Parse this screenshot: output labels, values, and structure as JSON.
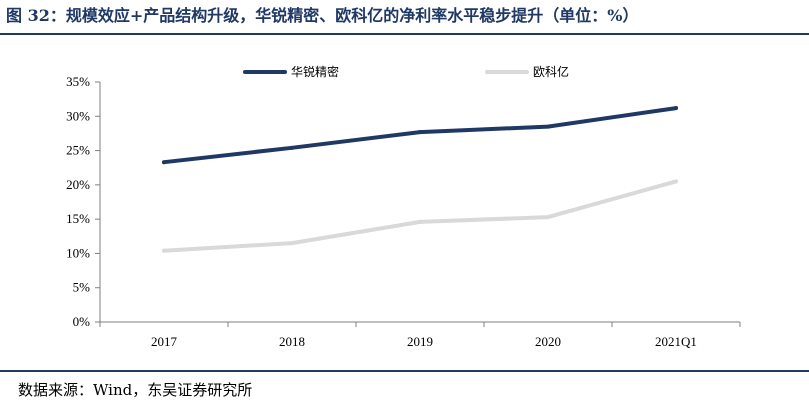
{
  "figure": {
    "title": "图 32：规模效应+产品结构升级，华锐精密、欧科亿的净利率水平稳步提升（单位：%）",
    "source": "数据来源：Wind，东吴证券研究所"
  },
  "colors": {
    "title": "#1f3864",
    "series_1": "#1f3864",
    "series_2": "#d9d9d9",
    "axis": "#7f7f7f"
  },
  "chart_data": {
    "type": "line",
    "categories": [
      "2017",
      "2018",
      "2019",
      "2020",
      "2021Q1"
    ],
    "series": [
      {
        "name": "华锐精密",
        "values": [
          23.3,
          25.4,
          27.7,
          28.5,
          31.2
        ]
      },
      {
        "name": "欧科亿",
        "values": [
          10.4,
          11.5,
          14.6,
          15.3,
          20.5
        ]
      }
    ],
    "y_ticks": [
      "0%",
      "5%",
      "10%",
      "15%",
      "20%",
      "25%",
      "30%",
      "35%"
    ],
    "ylim": [
      0,
      35
    ],
    "y_unit": "%",
    "grid": false,
    "legend_position": "top"
  }
}
